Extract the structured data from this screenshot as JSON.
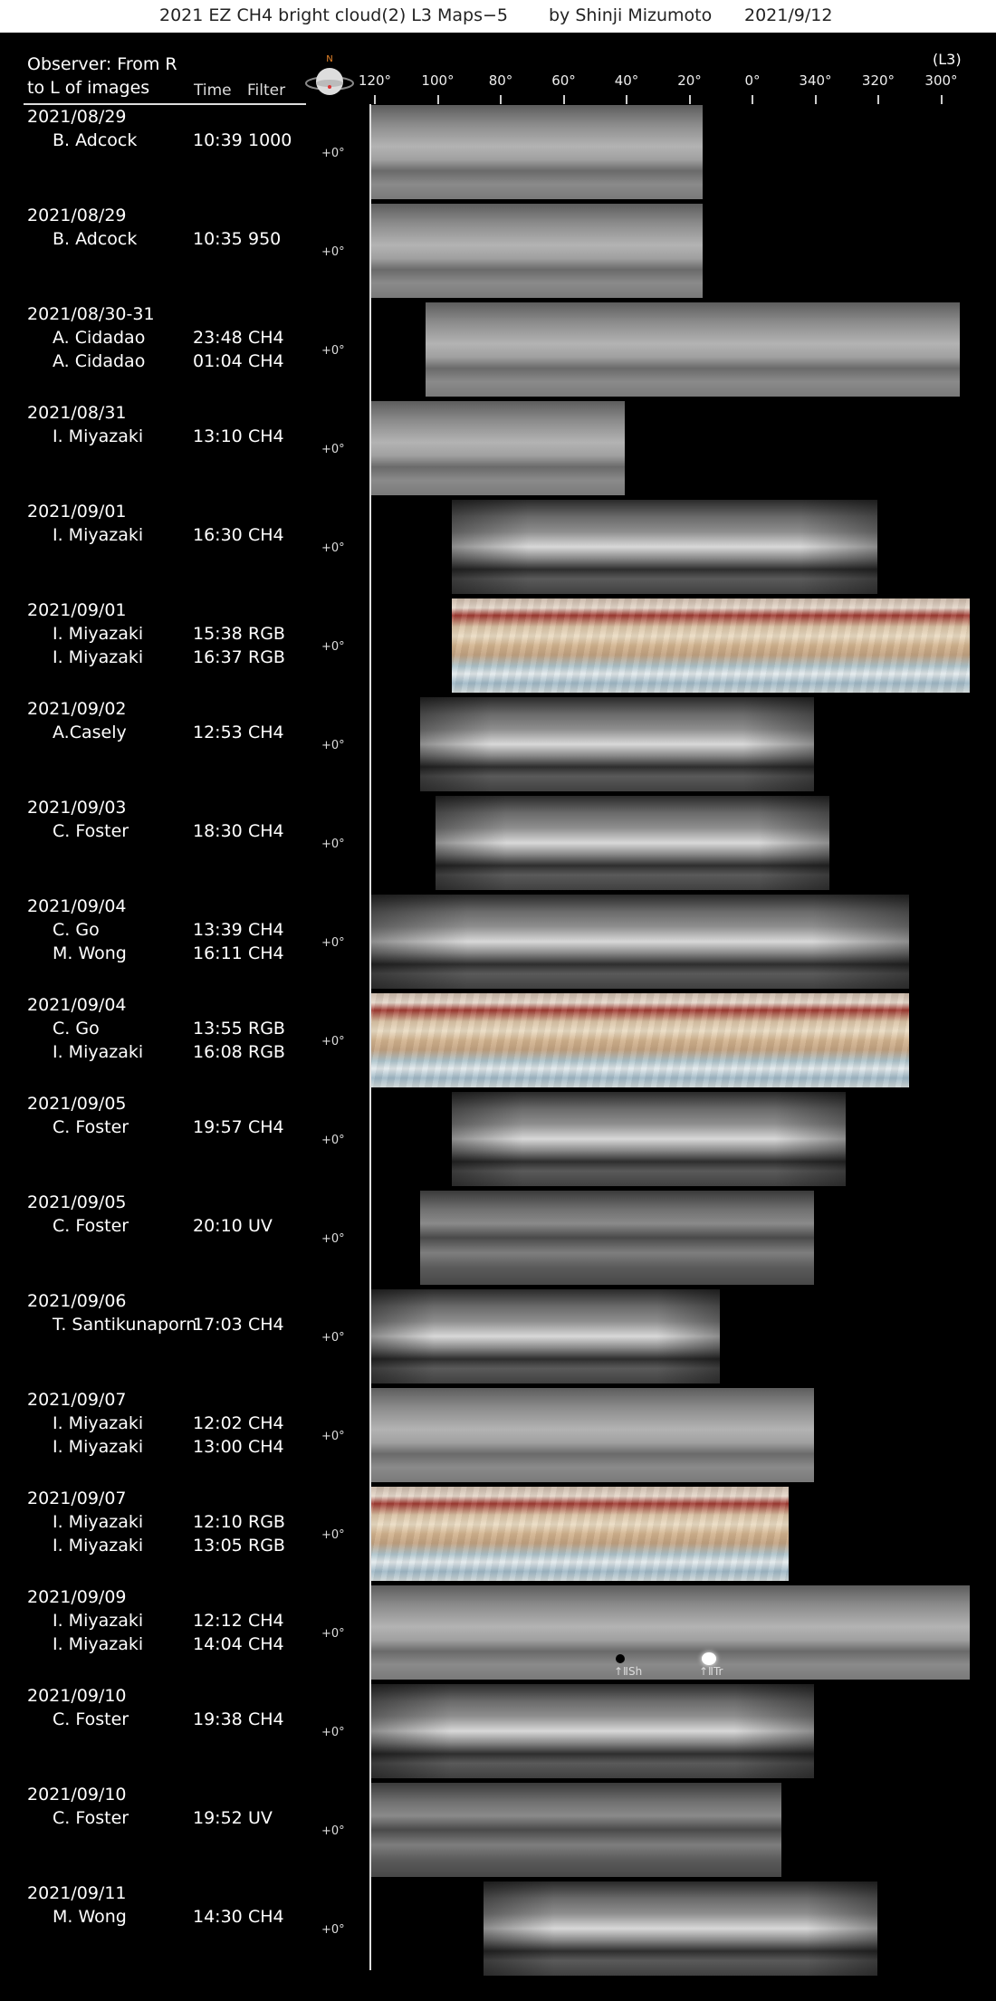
{
  "title": {
    "main": "2021 EZ CH4 bright cloud(2) L3 Maps−5",
    "author": "by Shinji Mizumoto",
    "date": "2021/9/12"
  },
  "header": {
    "observer_line1": "Observer: From R",
    "observer_line2": "to L of images",
    "time_label": "Time",
    "filter_label": "Filter",
    "north_label": "N",
    "system_label": "(L3)"
  },
  "longitudes": [
    "120°",
    "100°",
    "80°",
    "60°",
    "40°",
    "20°",
    "0°",
    "340°",
    "320°",
    "300°"
  ],
  "latitude_label": "+0°",
  "rows": [
    {
      "date": "2021/08/29",
      "entries": [
        {
          "observer": "B. Adcock",
          "time": "10:39",
          "filter": "1000"
        }
      ],
      "style": "pale",
      "x": 0.0,
      "w": 0.553
    },
    {
      "date": "2021/08/29",
      "entries": [
        {
          "observer": "B. Adcock",
          "time": "10:35",
          "filter": "950"
        }
      ],
      "style": "pale",
      "x": 0.0,
      "w": 0.553
    },
    {
      "date": "2021/08/30-31",
      "entries": [
        {
          "observer": "A. Cidadao",
          "time": "23:48",
          "filter": "CH4"
        },
        {
          "observer": "A. Cidadao",
          "time": "01:04",
          "filter": "CH4"
        }
      ],
      "style": "pale",
      "x": 0.091,
      "w": 0.891
    },
    {
      "date": "2021/08/31",
      "entries": [
        {
          "observer": "I. Miyazaki",
          "time": "13:10",
          "filter": "CH4"
        }
      ],
      "style": "pale",
      "x": 0.0,
      "w": 0.423
    },
    {
      "date": "2021/09/01",
      "entries": [
        {
          "observer": "I. Miyazaki",
          "time": "16:30",
          "filter": "CH4"
        }
      ],
      "style": "ch4",
      "x": 0.134,
      "w": 0.711
    },
    {
      "date": "2021/09/01",
      "entries": [
        {
          "observer": "I. Miyazaki",
          "time": "15:38",
          "filter": "RGB"
        },
        {
          "observer": "I. Miyazaki",
          "time": "16:37",
          "filter": "RGB"
        }
      ],
      "style": "rgb",
      "x": 0.134,
      "w": 0.864
    },
    {
      "date": "2021/09/02",
      "entries": [
        {
          "observer": "A.Casely",
          "time": "12:53",
          "filter": "CH4"
        }
      ],
      "style": "ch4",
      "x": 0.081,
      "w": 0.657
    },
    {
      "date": "2021/09/03",
      "entries": [
        {
          "observer": "C. Foster",
          "time": "18:30",
          "filter": "CH4"
        }
      ],
      "style": "ch4",
      "x": 0.107,
      "w": 0.657
    },
    {
      "date": "2021/09/04",
      "entries": [
        {
          "observer": "C. Go",
          "time": "13:39",
          "filter": "CH4"
        },
        {
          "observer": "M. Wong",
          "time": "16:11",
          "filter": "CH4"
        }
      ],
      "style": "ch4",
      "x": 0.0,
      "w": 0.897
    },
    {
      "date": "2021/09/04",
      "entries": [
        {
          "observer": "C. Go",
          "time": "13:55",
          "filter": "RGB"
        },
        {
          "observer": "I. Miyazaki",
          "time": "16:08",
          "filter": "RGB"
        }
      ],
      "style": "rgb",
      "x": 0.0,
      "w": 0.897
    },
    {
      "date": "2021/09/05",
      "entries": [
        {
          "observer": "C. Foster",
          "time": "19:57",
          "filter": "CH4"
        }
      ],
      "style": "ch4",
      "x": 0.134,
      "w": 0.657
    },
    {
      "date": "2021/09/05",
      "entries": [
        {
          "observer": "C. Foster",
          "time": "20:10",
          "filter": "UV"
        }
      ],
      "style": "uv",
      "x": 0.081,
      "w": 0.657
    },
    {
      "date": "2021/09/06",
      "entries": [
        {
          "observer": "T. Santikunaporn",
          "time": "17:03",
          "filter": "CH4"
        }
      ],
      "style": "ch4",
      "x": 0.0,
      "w": 0.581
    },
    {
      "date": "2021/09/07",
      "entries": [
        {
          "observer": "I. Miyazaki",
          "time": "12:02",
          "filter": "CH4"
        },
        {
          "observer": "I. Miyazaki",
          "time": "13:00",
          "filter": "CH4"
        }
      ],
      "style": "pale",
      "x": 0.0,
      "w": 0.738
    },
    {
      "date": "2021/09/07",
      "entries": [
        {
          "observer": "I. Miyazaki",
          "time": "12:10",
          "filter": "RGB"
        },
        {
          "observer": "I. Miyazaki",
          "time": "13:05",
          "filter": "RGB"
        }
      ],
      "style": "rgb",
      "x": 0.0,
      "w": 0.696
    },
    {
      "date": "2021/09/09",
      "entries": [
        {
          "observer": "I. Miyazaki",
          "time": "12:12",
          "filter": "CH4"
        },
        {
          "observer": "I. Miyazaki",
          "time": "14:04",
          "filter": "CH4"
        }
      ],
      "style": "pale",
      "x": 0.0,
      "w": 0.998,
      "annotations": [
        "↑ⅡSh",
        "↑ⅡTr"
      ]
    },
    {
      "date": "2021/09/10",
      "entries": [
        {
          "observer": "C. Foster",
          "time": "19:38",
          "filter": "CH4"
        }
      ],
      "style": "ch4",
      "x": 0.0,
      "w": 0.738
    },
    {
      "date": "2021/09/10",
      "entries": [
        {
          "observer": "C. Foster",
          "time": "19:52",
          "filter": "UV"
        }
      ],
      "style": "uv",
      "x": 0.0,
      "w": 0.685
    },
    {
      "date": "2021/09/11",
      "entries": [
        {
          "observer": "M. Wong",
          "time": "14:30",
          "filter": "CH4"
        }
      ],
      "style": "ch4",
      "x": 0.187,
      "w": 0.657
    }
  ]
}
